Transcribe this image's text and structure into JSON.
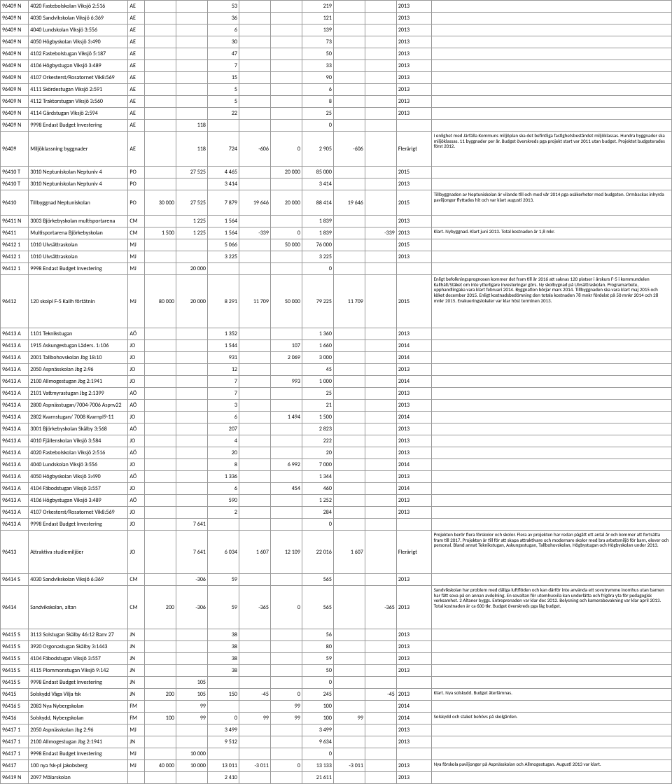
{
  "columns": {
    "widths": [
      34,
      120,
      20,
      38,
      38,
      38,
      38,
      38,
      38,
      38,
      38,
      42,
      290
    ]
  },
  "colors": {
    "border": "#999999",
    "background": "#ffffff",
    "text": "#000000"
  },
  "rows": [
    {
      "c": [
        "96409 N",
        "4020 Fastebolskolan Viksjö 2:516",
        "AE",
        "",
        "",
        "53",
        "",
        "",
        "219",
        "",
        "",
        "2013",
        ""
      ]
    },
    {
      "c": [
        "96409 N",
        "4030 Sandvikskolan Viksjö 6:369",
        "AE",
        "",
        "",
        "36",
        "",
        "",
        "121",
        "",
        "",
        "2013",
        ""
      ]
    },
    {
      "c": [
        "96409 N",
        "4040 Lundskolan Viksjö 3:556",
        "AE",
        "",
        "",
        "6",
        "",
        "",
        "139",
        "",
        "",
        "2013",
        ""
      ]
    },
    {
      "c": [
        "96409 N",
        "4050 Högbyskolan Viksjö 3:490",
        "AE",
        "",
        "",
        "30",
        "",
        "",
        "73",
        "",
        "",
        "2013",
        ""
      ]
    },
    {
      "c": [
        "96409 N",
        "4102 Fastebolstugan Viksjö 5:187",
        "AE",
        "",
        "",
        "47",
        "",
        "",
        "50",
        "",
        "",
        "2013",
        ""
      ]
    },
    {
      "c": [
        "96409 N",
        "4106 Högbystugan Viksjö 3:489",
        "AE",
        "",
        "",
        "7",
        "",
        "",
        "33",
        "",
        "",
        "2013",
        ""
      ]
    },
    {
      "c": [
        "96409 N",
        "4107 Orkesterst/Rosatornet Vik8:569",
        "AE",
        "",
        "",
        "15",
        "",
        "",
        "90",
        "",
        "",
        "2013",
        ""
      ]
    },
    {
      "c": [
        "96409 N",
        "4111 Skördestugan Viksjö 2:591",
        "AE",
        "",
        "",
        "5",
        "",
        "",
        "6",
        "",
        "",
        "2013",
        ""
      ]
    },
    {
      "c": [
        "96409 N",
        "4112 Traktorstugan Viksjö 3:560",
        "AE",
        "",
        "",
        "5",
        "",
        "",
        "8",
        "",
        "",
        "2013",
        ""
      ]
    },
    {
      "c": [
        "96409 N",
        "4114 Gärdstugan Viksjö 2:594",
        "AE",
        "",
        "",
        "22",
        "",
        "",
        "25",
        "",
        "",
        "2013",
        ""
      ]
    },
    {
      "c": [
        "96409 N",
        "9998 Endast Budget Investering",
        "AE",
        "",
        "118",
        "",
        "",
        "",
        "0",
        "",
        "",
        "",
        ""
      ]
    },
    {
      "c": [
        "96409",
        "Miljöklassning byggnader",
        "AE",
        "",
        "118",
        "724",
        "-606",
        "0",
        "2 905",
        "-606",
        "",
        "Flerårigt",
        "I enlighet med Järfälla Kommuns miljöplan ska det befintliga fastighetsbeståndet miljöklassas. Hundra byggnader ska miljöklassas. 11 byggnader per år. Budget överskreds pga projekt start var 2011 utan budget. Projektet budgeterades först 2012."
      ],
      "cls": "tall"
    },
    {
      "c": [
        "96410 T",
        "3010 Neptuniskolan Neptuniv 4",
        "PO",
        "",
        "27 525",
        "4 465",
        "",
        "20 000",
        "85 000",
        "",
        "",
        "2015",
        ""
      ]
    },
    {
      "c": [
        "96410 T",
        "3010 Neptuniskolan Neptuniv 4",
        "PO",
        "",
        "",
        "3 414",
        "",
        "",
        "3 414",
        "",
        "",
        "2013",
        ""
      ]
    },
    {
      "c": [
        "96410",
        "Tillbyggnad Neptuniskolan",
        "PO",
        "30 000",
        "27 525",
        "7 879",
        "19 646",
        "20 000",
        "88 414",
        "19 646",
        "",
        "2015",
        "Tillbyggnaden av Neptuniskolan är vilande till och med vår 2014 pga osäkerheter med budgeten. Ormbackas inhyrda paviljonger flyttades hit och var klart augusti 2013."
      ],
      "cls": "med"
    },
    {
      "c": [
        "96411 N",
        "3003 Björkebyskolan multisportarena",
        "CM",
        "",
        "1 225",
        "1 564",
        "",
        "",
        "1 839",
        "",
        "",
        "2013",
        ""
      ]
    },
    {
      "c": [
        "96411",
        "Multisportarena Björkebyskolan",
        "CM",
        "1 500",
        "1 225",
        "1 564",
        "-339",
        "0",
        "1 839",
        "",
        "-339",
        "2013",
        "Klart. Nybyggnad. Klart juni 2013. Total kostnaden är 1,8 mkr."
      ]
    },
    {
      "c": [
        "96412 1",
        "1010 Ulvsättraskolan",
        "MJ",
        "",
        "",
        "5 066",
        "",
        "50 000",
        "76 000",
        "",
        "",
        "2015",
        ""
      ]
    },
    {
      "c": [
        "96412 1",
        "1010 Ulvsättraskolan",
        "MJ",
        "",
        "",
        "3 225",
        "",
        "",
        "3 225",
        "",
        "",
        "2013",
        ""
      ]
    },
    {
      "c": [
        "96412 1",
        "9998 Endast Budget Investering",
        "MJ",
        "",
        "20 000",
        "",
        "",
        "",
        "0",
        "",
        "",
        "",
        ""
      ]
    },
    {
      "c": [
        "96412",
        "120 skolpl F-5 Kallh förtätnin",
        "MJ",
        "80 000",
        "20 000",
        "8 291",
        "11 709",
        "50 000",
        "79 225",
        "11 709",
        "",
        "2015",
        "Enligt befolkningsprognosen kommer det fram till år 2016 att saknas 120 platser i årskurs F-5 i kommundelen Kallhäll/Stäket om inte ytterligare investeringar görs. Ny skolbygnad på Ulvsättraskolan. Programarbete, upphandlingaka vara klart februari 2014. Byggnation börjar mars 2014. Tillbyggnaden ska vara klart maj 2015 och köket december 2015. Enligt kostnadsbedömning den totala kostnaden 78 mnkr fördelat på 50 mnkr 2014 och 28 mnkr 2015. Evakueringslokaler var klar höst terminen 2013."
      ],
      "cls": "xtall"
    },
    {
      "c": [
        "96413 A",
        "1101 Teknikstugan",
        "AÖ",
        "",
        "",
        "1 352",
        "",
        "",
        "1 360",
        "",
        "",
        "2013",
        ""
      ]
    },
    {
      "c": [
        "96413 A",
        "1915 Askungestugan Läders. 1:106",
        "JO",
        "",
        "",
        "1 544",
        "",
        "107",
        "1 660",
        "",
        "",
        "2014",
        ""
      ]
    },
    {
      "c": [
        "96413 A",
        "2001 Tallbohovskolan Jbg 18:10",
        "JO",
        "",
        "",
        "931",
        "",
        "2 069",
        "3 000",
        "",
        "",
        "2014",
        ""
      ]
    },
    {
      "c": [
        "96413 A",
        "2050 Aspnässkolan Jbg 2:96",
        "JO",
        "",
        "",
        "12",
        "",
        "",
        "45",
        "",
        "",
        "2013",
        ""
      ]
    },
    {
      "c": [
        "96413 A",
        "2100 Allmogestugan Jbg 2:1941",
        "JO",
        "",
        "",
        "7",
        "",
        "993",
        "1 000",
        "",
        "",
        "2014",
        ""
      ]
    },
    {
      "c": [
        "96413 A",
        "2101 Vattmyrastugan Jbg 2:1399",
        "AÖ",
        "",
        "",
        "7",
        "",
        "",
        "25",
        "",
        "",
        "2013",
        ""
      ]
    },
    {
      "c": [
        "96413 A",
        "2800 Aspnässtugan/7004-7006 Aspnv22",
        "AÖ",
        "",
        "",
        "3",
        "",
        "",
        "21",
        "",
        "",
        "2013",
        ""
      ]
    },
    {
      "c": [
        "96413 A",
        "2802 Kvarnstugan/ 7008 Kvarnpl9-11",
        "JO",
        "",
        "",
        "6",
        "",
        "1 494",
        "1 500",
        "",
        "",
        "2014",
        ""
      ]
    },
    {
      "c": [
        "96413 A",
        "3001 Björkebyskolan Skälby 3:568",
        "AÖ",
        "",
        "",
        "207",
        "",
        "",
        "2 823",
        "",
        "",
        "2013",
        ""
      ]
    },
    {
      "c": [
        "96413 A",
        "4010 Fjällenskolan Viksjö 3:584",
        "JO",
        "",
        "",
        "4",
        "",
        "",
        "222",
        "",
        "",
        "2013",
        ""
      ]
    },
    {
      "c": [
        "96413 A",
        "4020 Fastebolskolan Viksjö 2:516",
        "AÖ",
        "",
        "",
        "20",
        "",
        "",
        "20",
        "",
        "",
        "2013",
        ""
      ]
    },
    {
      "c": [
        "96413 A",
        "4040 Lundskolan Viksjö 3:556",
        "JO",
        "",
        "",
        "8",
        "",
        "6 992",
        "7 000",
        "",
        "",
        "2014",
        ""
      ]
    },
    {
      "c": [
        "96413 A",
        "4050 Högbyskolan Viksjö 3:490",
        "AÖ",
        "",
        "",
        "1 336",
        "",
        "",
        "1 344",
        "",
        "",
        "2013",
        ""
      ]
    },
    {
      "c": [
        "96413 A",
        "4104 Fäbodstugan Viksjö 3:557",
        "JO",
        "",
        "",
        "6",
        "",
        "454",
        "460",
        "",
        "",
        "2014",
        ""
      ]
    },
    {
      "c": [
        "96413 A",
        "4106 Högbystugan Viksjö 3:489",
        "AÖ",
        "",
        "",
        "590",
        "",
        "",
        "1 252",
        "",
        "",
        "2013",
        ""
      ]
    },
    {
      "c": [
        "96413 A",
        "4107 Orkesterst/Rosatornet Vik8:569",
        "JO",
        "",
        "",
        "2",
        "",
        "",
        "284",
        "",
        "",
        "2013",
        ""
      ]
    },
    {
      "c": [
        "96413 A",
        "9998 Endast Budget Investering",
        "JO",
        "",
        "7 641",
        "",
        "",
        "",
        "0",
        "",
        "",
        "",
        ""
      ]
    },
    {
      "c": [
        "96413",
        "Attraktiva studiemiljöer",
        "JO",
        "",
        "7 641",
        "6 034",
        "1 607",
        "12 109",
        "22 016",
        "1 607",
        "",
        "Flerårigt",
        "Projekten berör flera förskolor och skolor. Flera av projekten har redan pågått ett antal år och kommer att fortsätta fram till 2017. Projekten är till för att skapa attraktivare och modernare skolor med bra arbetsmiljö för barn, elever och personal. Bland annat Teknikstugan, Askungestugan, Tallbohovskolan, Högbystugan och Högbyskolan under 2013."
      ],
      "cls": "xxtall"
    },
    {
      "c": [
        "96414 S",
        "4030 Sandvikskolan Viksjö 6:369",
        "CM",
        "",
        "-306",
        "59",
        "",
        "",
        "565",
        "",
        "",
        "2013",
        ""
      ]
    },
    {
      "c": [
        "96414",
        "Sandvikskolan, altan",
        "CM",
        "200",
        "-306",
        "59",
        "-365",
        "0",
        "565",
        "",
        "-365",
        "2013",
        "Sandvikskolan har problem med dåliga luftflöden och kan därför inte använda ett sovutrymme inomhus utan barnen har fått sova på en annan avdelning. En sovaltan för utomhusvila kan underlätta och frigöra yta för pedagogisk verksamhet. 2 Altaner byggs. Entreprenaden var klar dec 2012. Belysning och kamerabevakning var klar april 2013. Total kostnaden är ca 600 tkr. Budget överskreds pga låg budget."
      ],
      "cls": "xxtall"
    },
    {
      "c": [
        "96415 S",
        "3113 Solstugan Skälby 46:12 Banv 27",
        "JN",
        "",
        "",
        "38",
        "",
        "",
        "56",
        "",
        "",
        "2013",
        ""
      ]
    },
    {
      "c": [
        "96415 S",
        "3920 Orgonastugan Skälby 3:1443",
        "JN",
        "",
        "",
        "38",
        "",
        "",
        "80",
        "",
        "",
        "2013",
        ""
      ]
    },
    {
      "c": [
        "96415 S",
        "4104 Fäbodstugan Viksjö 3:557",
        "JN",
        "",
        "",
        "38",
        "",
        "",
        "59",
        "",
        "",
        "2013",
        ""
      ]
    },
    {
      "c": [
        "96415 S",
        "4115 Plommonstugan Viksjö 9:142",
        "JN",
        "",
        "",
        "38",
        "",
        "",
        "50",
        "",
        "",
        "2013",
        ""
      ]
    },
    {
      "c": [
        "96415 S",
        "9998 Endast Budget Investering",
        "JN",
        "",
        "105",
        "",
        "",
        "",
        "0",
        "",
        "",
        "",
        ""
      ]
    },
    {
      "c": [
        "96415",
        "Solskydd Våga Vilja fsk",
        "JN",
        "200",
        "105",
        "150",
        "-45",
        "0",
        "245",
        "",
        "-45",
        "2013",
        "Klart. Nya solskydd. Budget återlämnas."
      ]
    },
    {
      "c": [
        "96416 S",
        "2083 Nya Nybergskolan",
        "FM",
        "",
        "99",
        "",
        "",
        "99",
        "100",
        "",
        "",
        "2014",
        ""
      ]
    },
    {
      "c": [
        "96416",
        "Solskydd, Nybergskolan",
        "FM",
        "100",
        "99",
        "0",
        "99",
        "99",
        "100",
        "99",
        "",
        "2014",
        "Solskydd och staket behövs på skolgården."
      ]
    },
    {
      "c": [
        "96417 1",
        "2050 Aspnässkolan Jbg 2:96",
        "MJ",
        "",
        "",
        "3 499",
        "",
        "",
        "3 499",
        "",
        "",
        "2013",
        ""
      ]
    },
    {
      "c": [
        "96417 1",
        "2100 Allmogestugan Jbg 2:1941",
        "JN",
        "",
        "",
        "9 512",
        "",
        "",
        "9 634",
        "",
        "",
        "2013",
        ""
      ]
    },
    {
      "c": [
        "96417 1",
        "9998 Endast Budget Investering",
        "MJ",
        "",
        "10 000",
        "",
        "",
        "",
        "0",
        "",
        "",
        "",
        ""
      ]
    },
    {
      "c": [
        "96417",
        "100 nya fsk-pl jakobsberg",
        "MJ",
        "40 000",
        "10 000",
        "13 011",
        "-3 011",
        "0",
        "13 133",
        "-3 011",
        "",
        "2013",
        "Nya förskola paviljonger på Aspnässkolan och Allmogestugan. Augusti 2013 var klart."
      ]
    },
    {
      "c": [
        "96419 N",
        "2097 Mälarskolan",
        "",
        "",
        "",
        "2 410",
        "",
        "",
        "21 611",
        "",
        "",
        "2013",
        ""
      ]
    }
  ]
}
